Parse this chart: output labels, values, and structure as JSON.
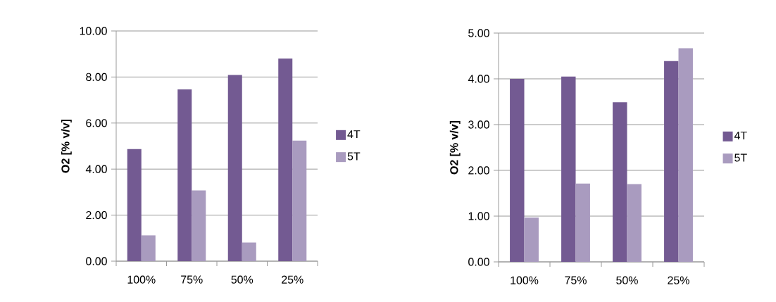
{
  "chart_data": [
    {
      "type": "bar",
      "ylabel": "O2 [% v/v]",
      "categories": [
        "100%",
        "75%",
        "50%",
        "25%"
      ],
      "series": [
        {
          "name": "4T",
          "color": "#735a92",
          "values": [
            4.87,
            7.46,
            8.09,
            8.8
          ]
        },
        {
          "name": "5T",
          "color": "#a99bbf",
          "values": [
            1.12,
            3.07,
            0.81,
            5.24
          ]
        }
      ],
      "ylim": [
        0,
        10
      ],
      "yticks": [
        {
          "value": 0,
          "label": "0.00"
        },
        {
          "value": 2,
          "label": "2.00"
        },
        {
          "value": 4,
          "label": "4.00"
        },
        {
          "value": 6,
          "label": "6.00"
        },
        {
          "value": 8,
          "label": "8.00"
        },
        {
          "value": 10,
          "label": "10.00"
        }
      ],
      "grid": "y",
      "legend": "right"
    },
    {
      "type": "bar",
      "ylabel": "O2 [% v/v]",
      "categories": [
        "100%",
        "75%",
        "50%",
        "25%"
      ],
      "series": [
        {
          "name": "4T",
          "color": "#735a92",
          "values": [
            4.0,
            4.05,
            3.49,
            4.39
          ]
        },
        {
          "name": "5T",
          "color": "#a99bbf",
          "values": [
            0.97,
            1.71,
            1.7,
            4.67
          ]
        }
      ],
      "ylim": [
        0,
        5
      ],
      "yticks": [
        {
          "value": 0,
          "label": "0.00"
        },
        {
          "value": 1,
          "label": "1.00"
        },
        {
          "value": 2,
          "label": "2.00"
        },
        {
          "value": 3,
          "label": "3.00"
        },
        {
          "value": 4,
          "label": "4.00"
        },
        {
          "value": 5,
          "label": "5.00"
        }
      ],
      "grid": "y",
      "legend": "right"
    }
  ]
}
